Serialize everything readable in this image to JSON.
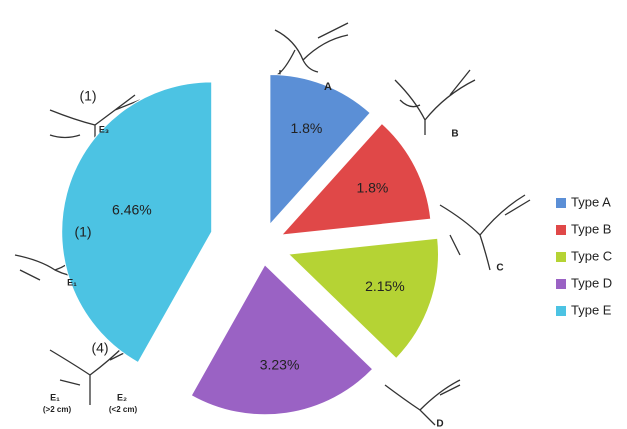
{
  "chart_data": {
    "type": "pie",
    "categories": [
      "Type A",
      "Type B",
      "Type C",
      "Type D",
      "Type E"
    ],
    "values": [
      1.8,
      1.8,
      2.15,
      3.23,
      6.46
    ],
    "value_labels": [
      "1.8%",
      "1.8%",
      "2.15%",
      "3.23%",
      "6.46%"
    ],
    "colors": [
      "#5b8fd6",
      "#e04848",
      "#b5d334",
      "#9a62c4",
      "#4cc3e3"
    ],
    "legend": "right",
    "annotations": [
      "A",
      "B",
      "C",
      "D",
      "(1)",
      "E₃",
      "(1)",
      "E₁",
      "(4)",
      "E₁",
      "(>2 cm)",
      "E₂",
      "(<2 cm)"
    ]
  }
}
